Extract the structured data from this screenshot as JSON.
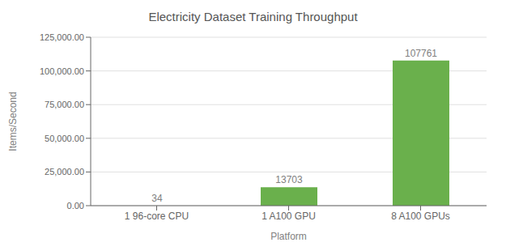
{
  "chart_data": {
    "type": "bar",
    "title": "Electricity Dataset Training Throughput",
    "categories": [
      "1 96-core CPU",
      "1 A100 GPU",
      "8 A100 GPUs"
    ],
    "values": [
      34,
      13703,
      107761
    ],
    "color": "#6ab04c",
    "xlabel": "Platform",
    "ylabel": "Items/Second",
    "ylim": [
      0,
      125000
    ],
    "yticks": [
      {
        "value": 0,
        "label": "0.00"
      },
      {
        "value": 25000,
        "label": "25,000.00"
      },
      {
        "value": 50000,
        "label": "50,000.00"
      },
      {
        "value": 75000,
        "label": "75,000.00"
      },
      {
        "value": 100000,
        "label": "100,000.00"
      },
      {
        "value": 125000,
        "label": "125,000.00"
      }
    ],
    "grid": true,
    "data_labels": true
  }
}
